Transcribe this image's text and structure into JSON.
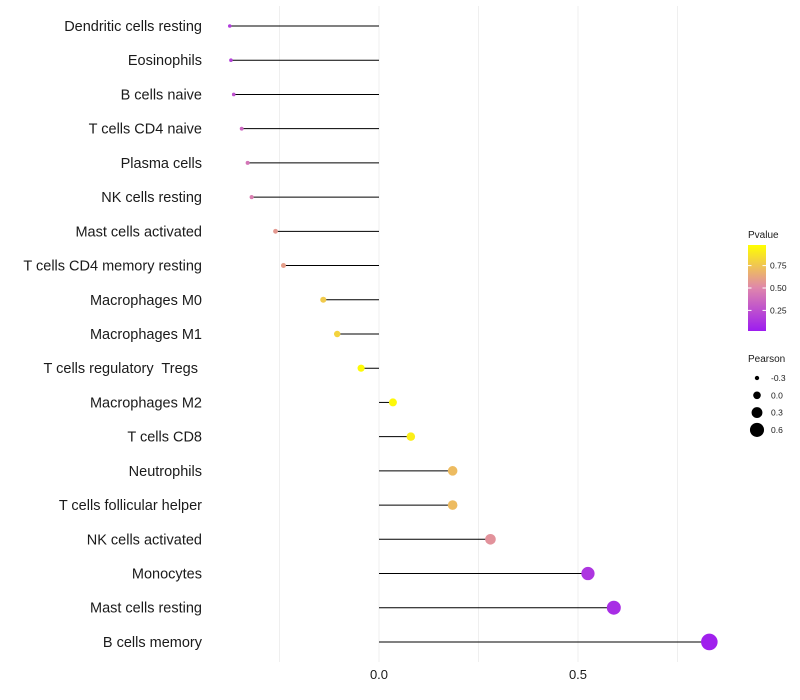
{
  "chart_data": {
    "type": "lollipop",
    "categories": [
      "Dendritic cells resting",
      "Eosinophils",
      "B cells naive",
      "T cells CD4 naive",
      "Plasma cells",
      "NK cells resting",
      "Mast cells activated",
      "T cells CD4 memory resting",
      "Macrophages M0",
      "Macrophages M1",
      "T cells regulatory  Tregs ",
      "Macrophages M2",
      "T cells CD8",
      "Neutrophils",
      "T cells follicular helper",
      "NK cells activated",
      "Monocytes",
      "Mast cells resting",
      "B cells memory"
    ],
    "pearson": [
      -0.375,
      -0.372,
      -0.365,
      -0.345,
      -0.33,
      -0.32,
      -0.26,
      -0.24,
      -0.14,
      -0.105,
      -0.045,
      0.035,
      0.08,
      0.185,
      0.185,
      0.28,
      0.525,
      0.59,
      0.83
    ],
    "pvalue": [
      0.15,
      0.17,
      0.25,
      0.35,
      0.42,
      0.46,
      0.58,
      0.6,
      0.78,
      0.82,
      0.98,
      0.97,
      0.93,
      0.72,
      0.72,
      0.55,
      0.12,
      0.08,
      0.02
    ],
    "x_ticks": [
      0.0,
      0.5
    ],
    "x_tick_labels": [
      "0.0",
      "0.5"
    ],
    "xlim": [
      -0.45,
      0.85
    ],
    "xlabel": "",
    "ylabel": "",
    "grid": true,
    "legend_position": "right",
    "color_legend": {
      "title": "Pvalue",
      "ticks": [
        0.25,
        0.5,
        0.75
      ],
      "tick_labels": [
        "0.25",
        "0.50",
        "0.75"
      ],
      "colors": {
        "low": "#9d1cf0",
        "mid": "#df86ac",
        "high": "#ffff00"
      }
    },
    "size_legend": {
      "title": "Pearson",
      "values": [
        -0.3,
        0.0,
        0.3,
        0.6
      ],
      "labels": [
        "-0.3",
        "0.0",
        "0.3",
        "0.6"
      ]
    },
    "stem_color": "#000000"
  }
}
